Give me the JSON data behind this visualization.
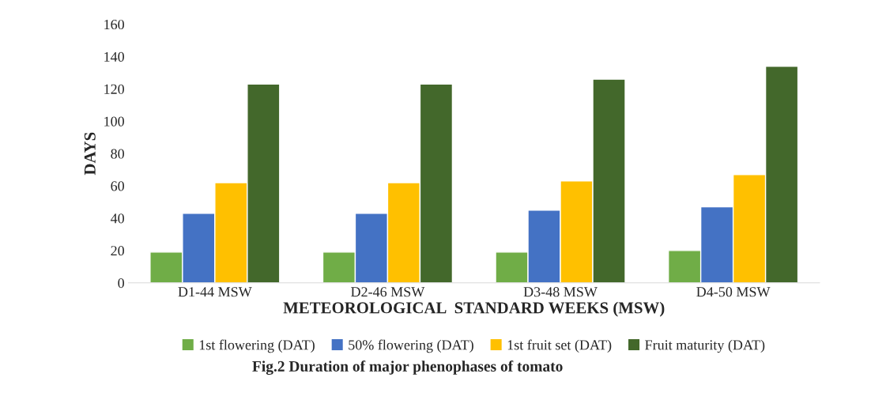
{
  "chart_data": {
    "type": "bar",
    "title": "Fig.2 Duration of major phenophases of tomato",
    "xlabel": "METEOROLOGICAL  STANDARD WEEKS (MSW)",
    "ylabel": "DAYS",
    "categories": [
      "D1-44 MSW",
      "D2-46 MSW",
      "D3-48 MSW",
      "D4-50 MSW"
    ],
    "series": [
      {
        "name": "1st flowering (DAT)",
        "color": "#70ad47",
        "values": [
          19,
          19,
          19,
          20
        ]
      },
      {
        "name": "50% flowering (DAT)",
        "color": "#4472c4",
        "values": [
          43,
          43,
          45,
          47
        ]
      },
      {
        "name": "1st fruit set (DAT)",
        "color": "#ffc000",
        "values": [
          62,
          62,
          63,
          67
        ]
      },
      {
        "name": "Fruit maturity (DAT)",
        "color": "#43682b",
        "values": [
          123,
          123,
          126,
          134
        ]
      }
    ],
    "ylim": [
      0,
      160
    ],
    "yticks": [
      0,
      20,
      40,
      60,
      80,
      100,
      120,
      140,
      160
    ],
    "grid": false,
    "legend": "bottom"
  }
}
